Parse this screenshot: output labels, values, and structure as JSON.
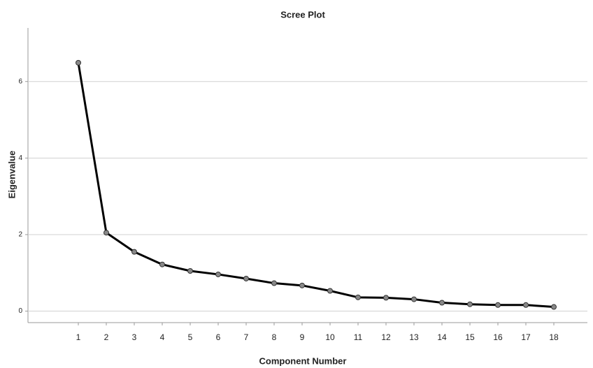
{
  "chart_data": {
    "type": "line",
    "title": "Scree Plot",
    "x_label": "Component Number",
    "y_label": "Eigenvalue",
    "x": [
      1,
      2,
      3,
      4,
      5,
      6,
      7,
      8,
      9,
      10,
      11,
      12,
      13,
      14,
      15,
      16,
      17,
      18
    ],
    "series": [
      {
        "name": "Eigenvalue",
        "color": "#000000",
        "values": [
          6.49,
          2.05,
          1.55,
          1.22,
          1.05,
          0.96,
          0.85,
          0.73,
          0.67,
          0.53,
          0.36,
          0.35,
          0.31,
          0.22,
          0.18,
          0.16,
          0.16,
          0.11
        ]
      }
    ],
    "xlim": [
      -0.8,
      19.2
    ],
    "xticks": [
      1,
      2,
      3,
      4,
      5,
      6,
      7,
      8,
      9,
      10,
      11,
      12,
      13,
      14,
      15,
      16,
      17,
      18
    ],
    "ylim": [
      -0.3,
      7.4
    ],
    "yticks": [
      0,
      2,
      4,
      6
    ],
    "grid": true
  }
}
